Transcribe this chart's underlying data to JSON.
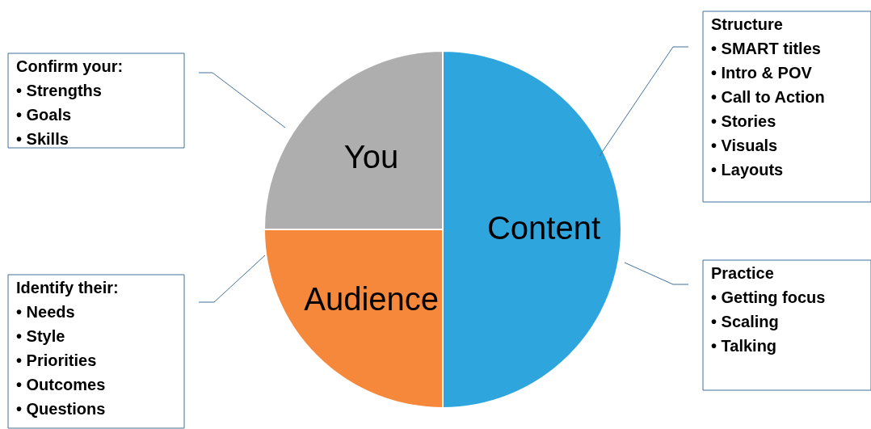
{
  "chart_data": {
    "type": "pie",
    "categories": [
      "Content",
      "Audience",
      "You"
    ],
    "values": [
      50,
      25,
      25
    ],
    "colors": [
      "#2ea5dd",
      "#f5883b",
      "#aeaeae"
    ],
    "annotations": [
      "Confirm your:\n•   Strengths\n•   Goals\n•   Skills",
      "Identify their:\n•   Needs\n•   Style\n•   Priorities\n•   Outcomes\n•   Questions",
      "Structure\n•   SMART titles\n•   Intro & POV\n•   Call to Action\n•   Stories\n•   Visuals\n•   Layouts",
      "Practice\n•   Getting focus\n•   Scaling\n•   Talking"
    ]
  }
}
